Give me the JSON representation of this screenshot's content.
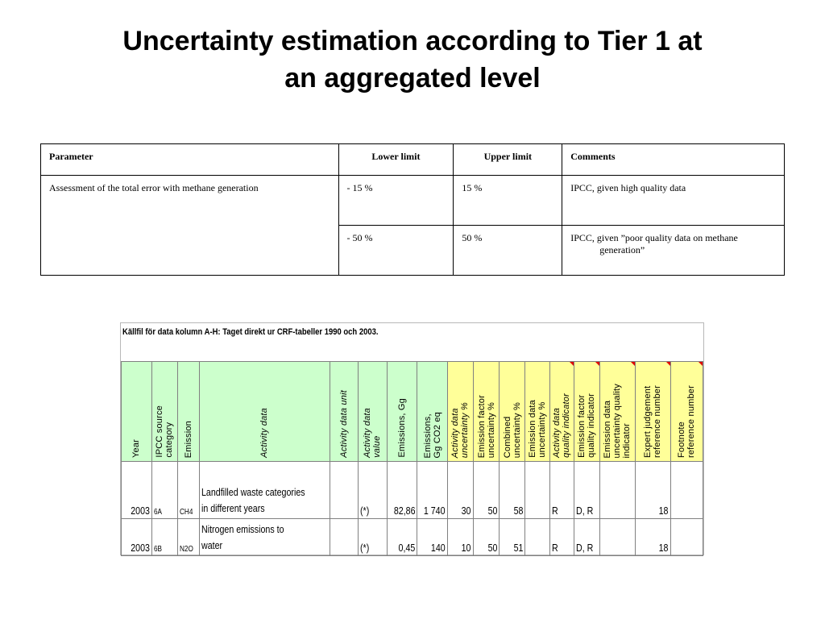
{
  "title": {
    "line1": "Uncertainty estimation according to Tier 1 at",
    "line2": "an aggregated level"
  },
  "param_table": {
    "headers": [
      "Parameter",
      "Lower limit",
      "Upper limit",
      "Comments"
    ],
    "rows": [
      {
        "parameter": "Assessment of the total error with methane generation",
        "lower": "- 15 %",
        "upper": "15 %",
        "comment": "IPCC, given high quality data"
      },
      {
        "lower": "- 50 %",
        "upper": "50 %",
        "comment": "IPCC, given ”poor quality data on methane generation”"
      }
    ]
  },
  "spreadsheet": {
    "title": "Källfil för data kolumn A-H: Taget direkt ur CRF-tabeller 1990 och 2003.",
    "headers": [
      "Year",
      "IPCC source\ncategory",
      "Emission",
      "Activity data",
      "Activity data unit",
      "Activity data\nvalue",
      "Emissions, Gg",
      "Emissions,\nGg CO2 eq",
      "Activity data\nuncertainty %",
      "Emission factor\nuncertainty %",
      "Combined\nuncertainty %",
      "Emission data\nuncertainty %",
      "Activity data\nquality indicator",
      "Emission factor\nquality indicator",
      "Emission data\nuncertainty quality\nindicator",
      "Expert judgement\nreference number",
      "Footnote\nreference number"
    ],
    "rows": [
      {
        "year": "2003",
        "category": "6A",
        "emission": "CH4",
        "activity_line1": "Landfilled waste categories",
        "activity_line2": "in different years",
        "unit": "",
        "value": "(*)",
        "emissions_gg": "82,86",
        "emissions_co2": "1 740",
        "ad_unc": "30",
        "ef_unc": "50",
        "comb_unc": "58",
        "ed_unc": "",
        "ad_qi": "R",
        "ef_qi": "D, R",
        "ed_qi": "",
        "expert_ref": "18",
        "footnote_ref": ""
      },
      {
        "year": "2003",
        "category": "6B",
        "emission": "N2O",
        "activity_line1": "Nitrogen emissions to",
        "activity_line2": "water",
        "unit": "",
        "value": "(*)",
        "emissions_gg": "0,45",
        "emissions_co2": "140",
        "ad_unc": "10",
        "ef_unc": "50",
        "comb_unc": "51",
        "ed_unc": "",
        "ad_qi": "R",
        "ef_qi": "D, R",
        "ed_qi": "",
        "expert_ref": "18",
        "footnote_ref": ""
      }
    ]
  },
  "colors": {
    "green_header": "#ccffcc",
    "yellow_header": "#ffff99",
    "comment_marker": "#e00000"
  }
}
